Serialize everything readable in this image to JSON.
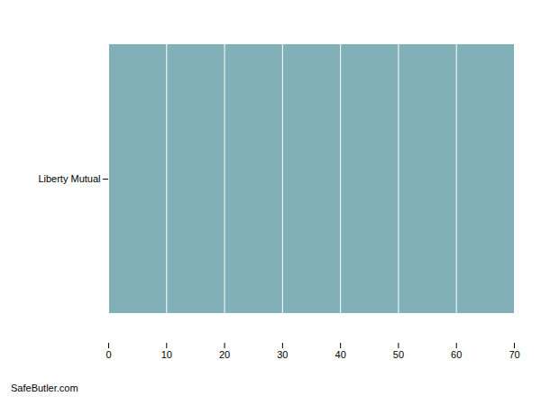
{
  "chart_data": {
    "type": "bar",
    "orientation": "horizontal",
    "categories": [
      "Liberty Mutual"
    ],
    "values": [
      70
    ],
    "color": "#82b0b8",
    "xlim": [
      0,
      70
    ],
    "xticks": [
      0,
      10,
      20,
      30,
      40,
      50,
      60,
      70
    ],
    "grid": true,
    "annotations": [
      "SafeButler.com"
    ]
  }
}
